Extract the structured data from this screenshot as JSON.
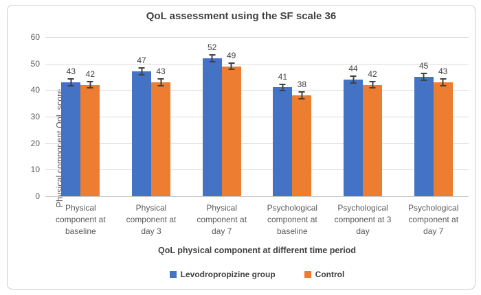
{
  "chart_data": {
    "type": "bar",
    "title": "QoL assessment using the SF scale 36",
    "xlabel": "QoL physical component at different time period",
    "ylabel": "Physical component QoL score",
    "categories": [
      "Physical component at baseline",
      "Physical component at day 3",
      "Physical component at day 7",
      "Psychological component at baseline",
      "Psychological component at 3 day",
      "Psychological component at day 7"
    ],
    "series": [
      {
        "name": "Levodropropizine group",
        "color": "#4472C4",
        "values": [
          43,
          47,
          52,
          41,
          44,
          45
        ]
      },
      {
        "name": "Control",
        "color": "#ED7D31",
        "values": [
          42,
          43,
          49,
          38,
          42,
          43
        ]
      }
    ],
    "error_bar_units": 1.5,
    "ylim": [
      0,
      60
    ],
    "ytick_step": 10,
    "yticks": [
      0,
      10,
      20,
      30,
      40,
      50,
      60
    ],
    "grid": true,
    "legend_position": "bottom"
  },
  "colors": {
    "gridline": "#D9D9D9",
    "axis_text": "#595959",
    "data_label_text": "#404040",
    "error_bar": "#404040",
    "frame_border": "#CDCDCD",
    "background": "#FFFFFF"
  }
}
